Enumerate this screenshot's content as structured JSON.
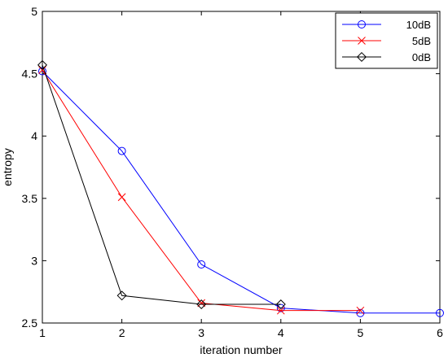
{
  "chart_data": {
    "type": "line",
    "title": "",
    "xlabel": "iteration number",
    "ylabel": "entropy",
    "xlim": [
      1,
      6
    ],
    "ylim": [
      2.5,
      5
    ],
    "xticks": [
      1,
      2,
      3,
      4,
      5,
      6
    ],
    "xtick_labels": [
      "1",
      "2",
      "3",
      "4",
      "5",
      "6"
    ],
    "yticks": [
      2.5,
      3,
      3.5,
      4,
      4.5,
      5
    ],
    "ytick_labels": [
      "2.5",
      "3",
      "3.5",
      "4",
      "4.5",
      "5"
    ],
    "grid": false,
    "legend_position": "top-right",
    "series": [
      {
        "name": "10dB",
        "color": "#0000ff",
        "marker": "circle",
        "x": [
          1,
          2,
          3,
          4,
          5,
          6
        ],
        "y": [
          4.52,
          3.88,
          2.97,
          2.62,
          2.58,
          2.58
        ]
      },
      {
        "name": "5dB",
        "color": "#ff0000",
        "marker": "x",
        "x": [
          1,
          2,
          3,
          4,
          5
        ],
        "y": [
          4.53,
          3.51,
          2.66,
          2.6,
          2.6
        ]
      },
      {
        "name": "0dB",
        "color": "#000000",
        "marker": "diamond",
        "x": [
          1,
          2,
          3,
          4
        ],
        "y": [
          4.57,
          2.72,
          2.65,
          2.65
        ]
      }
    ]
  }
}
